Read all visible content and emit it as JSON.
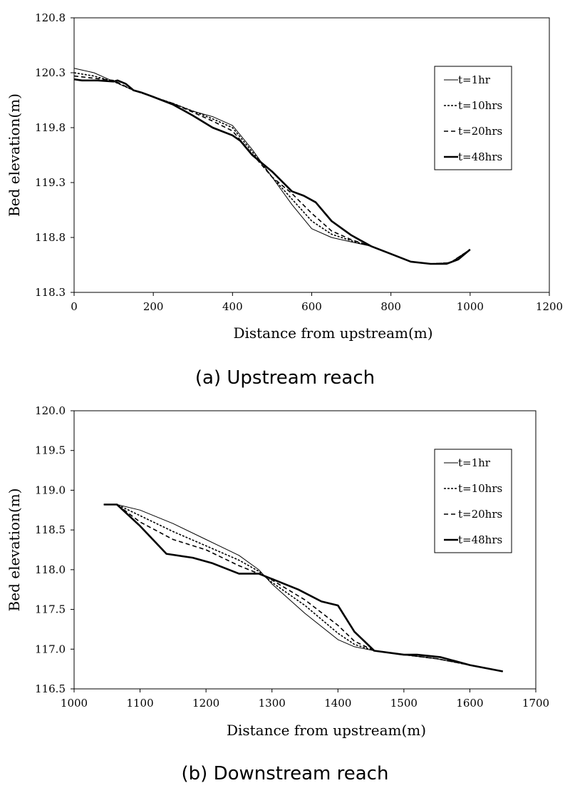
{
  "chart_data": [
    {
      "type": "line",
      "caption": "(a) Upstream reach",
      "xlabel": "Distance from upstream(m)",
      "ylabel": "Bed elevation(m)",
      "xlim": [
        0,
        1200
      ],
      "ylim": [
        118.3,
        120.8
      ],
      "xticks": [
        0,
        200,
        400,
        600,
        800,
        1000,
        1200
      ],
      "yticks": [
        118.3,
        118.8,
        119.3,
        119.8,
        120.3,
        120.8
      ],
      "xtick_labels": [
        "0",
        "200",
        "400",
        "600",
        "800",
        "1000",
        "1200"
      ],
      "ytick_labels": [
        "118.3",
        "118.8",
        "119.3",
        "119.8",
        "120.3",
        "120.8"
      ],
      "grid": false,
      "legend_position": "top-right",
      "series": [
        {
          "name": "t=1hr",
          "style": "thin-solid",
          "x": [
            0,
            50,
            100,
            150,
            200,
            250,
            300,
            350,
            400,
            450,
            500,
            550,
            600,
            650,
            700,
            750,
            800,
            850,
            900,
            950,
            1000
          ],
          "y": [
            120.34,
            120.3,
            120.22,
            120.14,
            120.08,
            120.02,
            119.95,
            119.9,
            119.82,
            119.6,
            119.35,
            119.1,
            118.88,
            118.8,
            118.76,
            118.72,
            118.65,
            118.58,
            118.56,
            118.57,
            118.69
          ]
        },
        {
          "name": "t=10hrs",
          "style": "dotted",
          "x": [
            0,
            50,
            100,
            150,
            200,
            250,
            300,
            350,
            400,
            450,
            500,
            550,
            600,
            650,
            700,
            750,
            800,
            850,
            900,
            950,
            1000
          ],
          "y": [
            120.3,
            120.27,
            120.22,
            120.14,
            120.08,
            120.02,
            119.95,
            119.88,
            119.8,
            119.58,
            119.35,
            119.15,
            118.95,
            118.83,
            118.77,
            118.72,
            118.65,
            118.58,
            118.56,
            118.57,
            118.69
          ]
        },
        {
          "name": "t=20hrs",
          "style": "dashed",
          "x": [
            0,
            50,
            100,
            150,
            200,
            250,
            300,
            350,
            400,
            450,
            500,
            550,
            600,
            650,
            700,
            750,
            800,
            850,
            900,
            950,
            1000
          ],
          "y": [
            120.27,
            120.25,
            120.23,
            120.14,
            120.08,
            120.02,
            119.94,
            119.86,
            119.77,
            119.56,
            119.35,
            119.2,
            119.02,
            118.86,
            118.78,
            118.72,
            118.65,
            118.58,
            118.56,
            118.57,
            118.69
          ]
        },
        {
          "name": "t=48hrs",
          "style": "thick-solid",
          "x": [
            0,
            20,
            60,
            100,
            110,
            130,
            150,
            170,
            200,
            250,
            300,
            350,
            400,
            420,
            450,
            500,
            550,
            580,
            610,
            650,
            700,
            750,
            800,
            850,
            900,
            940,
            970,
            1000
          ],
          "y": [
            120.24,
            120.23,
            120.23,
            120.22,
            120.23,
            120.2,
            120.14,
            120.12,
            120.08,
            120.01,
            119.91,
            119.8,
            119.73,
            119.68,
            119.55,
            119.4,
            119.22,
            119.18,
            119.12,
            118.95,
            118.82,
            118.72,
            118.65,
            118.58,
            118.56,
            118.56,
            118.6,
            118.69
          ]
        }
      ]
    },
    {
      "type": "line",
      "caption": "(b) Downstream reach",
      "xlabel": "Distance from upstream(m)",
      "ylabel": "Bed elevation(m)",
      "xlim": [
        1000,
        1700
      ],
      "ylim": [
        116.5,
        120.0
      ],
      "xticks": [
        1000,
        1100,
        1200,
        1300,
        1400,
        1500,
        1600,
        1700
      ],
      "yticks": [
        116.5,
        117.0,
        117.5,
        118.0,
        118.5,
        119.0,
        119.5,
        120.0
      ],
      "xtick_labels": [
        "1000",
        "1100",
        "1200",
        "1300",
        "1400",
        "1500",
        "1600",
        "1700"
      ],
      "ytick_labels": [
        "116.5",
        "117.0",
        "117.5",
        "118.0",
        "118.5",
        "119.0",
        "119.5",
        "120.0"
      ],
      "grid": false,
      "legend_position": "top-right",
      "series": [
        {
          "name": "t=1hr",
          "style": "thin-solid",
          "x": [
            1045,
            1065,
            1100,
            1150,
            1200,
            1250,
            1280,
            1300,
            1350,
            1400,
            1425,
            1455,
            1500,
            1550,
            1600,
            1650
          ],
          "y": [
            118.82,
            118.82,
            118.75,
            118.58,
            118.38,
            118.18,
            118.0,
            117.82,
            117.45,
            117.12,
            117.03,
            116.98,
            116.93,
            116.88,
            116.8,
            116.72
          ]
        },
        {
          "name": "t=10hrs",
          "style": "dotted",
          "x": [
            1045,
            1065,
            1100,
            1150,
            1200,
            1250,
            1280,
            1300,
            1350,
            1400,
            1425,
            1455,
            1500,
            1550,
            1600,
            1650
          ],
          "y": [
            118.82,
            118.82,
            118.68,
            118.48,
            118.3,
            118.12,
            117.98,
            117.84,
            117.55,
            117.2,
            117.06,
            116.98,
            116.93,
            116.88,
            116.8,
            116.72
          ]
        },
        {
          "name": "t=20hrs",
          "style": "dashed",
          "x": [
            1045,
            1065,
            1100,
            1150,
            1200,
            1250,
            1280,
            1300,
            1350,
            1400,
            1425,
            1455,
            1500,
            1550,
            1600,
            1650
          ],
          "y": [
            118.82,
            118.82,
            118.6,
            118.38,
            118.25,
            118.05,
            117.95,
            117.87,
            117.62,
            117.3,
            117.1,
            116.98,
            116.93,
            116.88,
            116.8,
            116.72
          ]
        },
        {
          "name": "t=48hrs",
          "style": "thick-solid",
          "x": [
            1045,
            1065,
            1100,
            1140,
            1180,
            1210,
            1250,
            1280,
            1310,
            1340,
            1375,
            1400,
            1425,
            1455,
            1500,
            1520,
            1555,
            1600,
            1650
          ],
          "y": [
            118.82,
            118.82,
            118.55,
            118.2,
            118.15,
            118.08,
            117.95,
            117.95,
            117.85,
            117.75,
            117.6,
            117.55,
            117.22,
            116.98,
            116.93,
            116.93,
            116.9,
            116.8,
            116.72
          ]
        }
      ]
    }
  ]
}
